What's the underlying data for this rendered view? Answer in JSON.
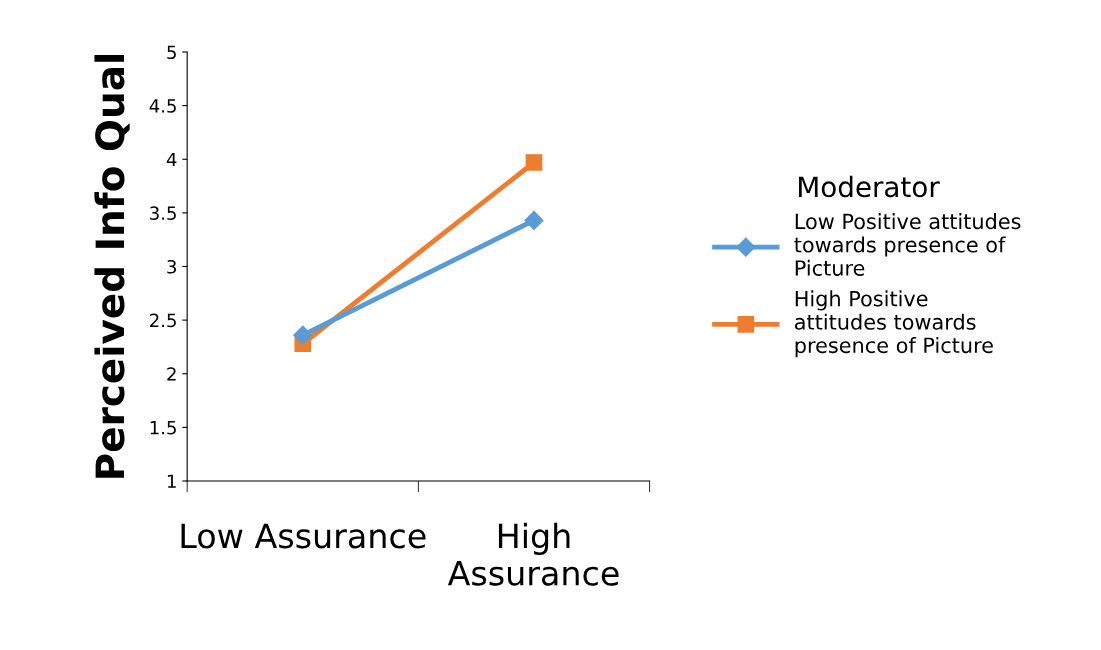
{
  "chart_data": {
    "type": "line",
    "ylabel": "Perceived Info Qual",
    "categories": [
      "Low Assurance",
      "High Assurance"
    ],
    "series": [
      {
        "name": "Low Positive attitudes towards presence of Picture",
        "color": "#5b9bd5",
        "marker": "diamond",
        "values": [
          2.36,
          3.43
        ]
      },
      {
        "name": "High Positive attitudes towards presence of Picture",
        "color": "#ed7d31",
        "marker": "square",
        "values": [
          2.28,
          3.97
        ]
      }
    ],
    "ylim": [
      1,
      5
    ],
    "yticks": [
      1,
      1.5,
      2,
      2.5,
      3,
      3.5,
      4,
      4.5,
      5
    ],
    "legend": "right",
    "legend_title": "Moderator",
    "grid": false,
    "line_style": "solid"
  }
}
